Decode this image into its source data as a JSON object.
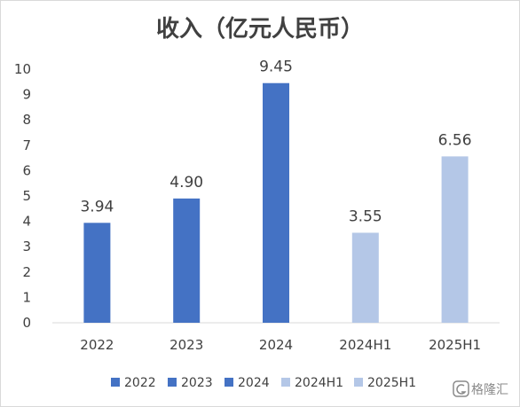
{
  "chart_data": {
    "type": "bar",
    "title": "收入（亿元人民币）",
    "categories": [
      "2022",
      "2023",
      "2024",
      "2024H1",
      "2025H1"
    ],
    "values": [
      3.94,
      4.9,
      9.45,
      3.55,
      6.56
    ],
    "data_labels": [
      "3.94",
      "4.90",
      "9.45",
      "3.55",
      "6.56"
    ],
    "colors": [
      "#4472C4",
      "#4472C4",
      "#4472C4",
      "#B4C7E7",
      "#B4C7E7"
    ],
    "ylim": [
      0,
      10
    ],
    "yticks": [
      0,
      1,
      2,
      3,
      4,
      5,
      6,
      7,
      8,
      9,
      10
    ],
    "xlabel": "",
    "ylabel": "",
    "grid": false,
    "legend": {
      "position": "bottom",
      "entries": [
        "2022",
        "2023",
        "2024",
        "2024H1",
        "2025H1"
      ]
    }
  },
  "watermark": {
    "text": "格隆汇",
    "icon": "glh-logo-icon"
  }
}
